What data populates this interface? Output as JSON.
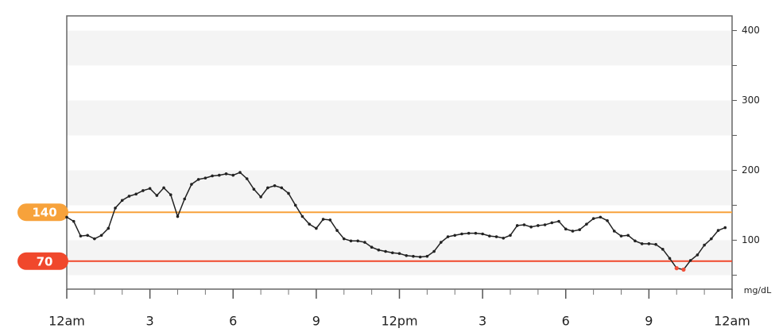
{
  "chart_data": {
    "type": "line",
    "x": [
      0,
      0.25,
      0.5,
      0.75,
      1,
      1.25,
      1.5,
      1.75,
      2,
      2.25,
      2.5,
      2.75,
      3,
      3.25,
      3.5,
      3.75,
      4,
      4.25,
      4.5,
      4.75,
      5,
      5.25,
      5.5,
      5.75,
      6,
      6.25,
      6.5,
      6.75,
      7,
      7.25,
      7.5,
      7.75,
      8,
      8.25,
      8.5,
      8.75,
      9,
      9.25,
      9.5,
      9.75,
      10,
      10.25,
      10.5,
      10.75,
      11,
      11.25,
      11.5,
      11.75,
      12,
      12.25,
      12.5,
      12.75,
      13,
      13.25,
      13.5,
      13.75,
      14,
      14.25,
      14.5,
      14.75,
      15,
      15.25,
      15.5,
      15.75,
      16,
      16.25,
      16.5,
      16.75,
      17,
      17.25,
      17.5,
      17.75,
      18,
      18.25,
      18.5,
      18.75,
      19,
      19.25,
      19.5,
      19.75,
      20,
      20.25,
      20.5,
      20.75,
      21,
      21.25,
      21.5,
      21.75,
      22,
      22.25,
      22.5,
      22.75,
      23,
      23.25,
      23.5,
      23.75
    ],
    "series": [
      {
        "color": "#222222",
        "values": [
          133,
          127,
          106,
          107,
          102,
          107,
          117,
          146,
          157,
          163,
          166,
          171,
          174,
          164,
          175,
          165,
          134,
          159,
          180,
          187,
          189,
          192,
          193,
          195,
          193,
          197,
          188,
          173,
          162,
          175,
          178,
          175,
          167,
          150,
          134,
          123,
          117,
          130,
          129,
          114,
          102,
          99,
          99,
          97,
          90,
          86,
          84,
          82,
          81,
          78,
          77,
          76,
          77,
          84,
          97,
          105,
          107,
          109,
          110,
          110,
          109,
          106,
          105,
          103,
          107,
          121,
          122,
          119,
          121,
          122,
          125,
          127,
          116,
          113,
          115,
          123,
          131,
          133,
          128,
          113,
          106,
          107,
          99,
          95,
          95,
          94,
          87,
          74,
          60,
          58,
          71,
          79,
          93,
          102,
          114,
          118
        ]
      }
    ],
    "low_color": "#f0503a",
    "targets": [
      {
        "value": 140,
        "color": "#f7a23b"
      },
      {
        "value": 70,
        "color": "#f0482c"
      }
    ],
    "xlim": [
      0,
      24
    ],
    "xticks": [
      {
        "value": 0,
        "label": "12am"
      },
      3,
      6,
      9,
      {
        "value": 12,
        "label": "12pm"
      },
      {
        "value": 15,
        "label": "3"
      },
      {
        "value": 18,
        "label": "6"
      },
      {
        "value": 21,
        "label": "9"
      },
      {
        "value": 24,
        "label": "12am"
      }
    ],
    "xminor": [
      1,
      2,
      4,
      5,
      7,
      8,
      10,
      11,
      13,
      14,
      16,
      17,
      19,
      20,
      22,
      23
    ],
    "ylim": [
      30,
      421
    ],
    "yticks": [
      100,
      200,
      300,
      400
    ],
    "yminor": [
      50,
      150,
      250,
      350
    ],
    "y_label": "mg/dL"
  }
}
